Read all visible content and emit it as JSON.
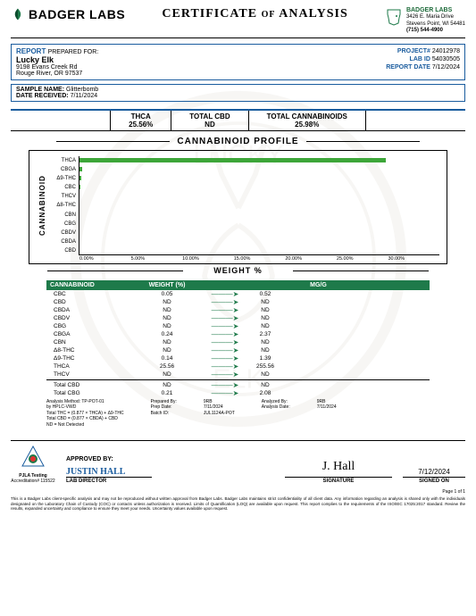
{
  "lab": {
    "name": "BADGER LABS",
    "addr_name": "BADGER LABS",
    "addr_line1": "3426 E. Maria Drive",
    "addr_line2": "Stevens Point, WI 54481",
    "phone": "(715) 544-4900"
  },
  "coa_title": "CERTIFICATE",
  "coa_of": "OF",
  "coa_analysis": "ANALYSIS",
  "report": {
    "label": "REPORT",
    "prepared_for": "PREPARED FOR:",
    "client": "Lucky Elk",
    "addr1": "9198 Evans Creek Rd",
    "addr2": "Rouge River, OR 97537",
    "project_lbl": "PROJECT#",
    "project": "24012978",
    "labid_lbl": "LAB ID",
    "labid": "54030505",
    "date_lbl": "REPORT DATE",
    "date": "7/12/2024"
  },
  "sample": {
    "name_lbl": "SAMPLE NAME:",
    "name": "Glitterbomb",
    "recv_lbl": "DATE RECEIVED:",
    "recv": "7/11/2024"
  },
  "summary": [
    {
      "h": "THCA",
      "v": "25.56%"
    },
    {
      "h": "TOTAL CBD",
      "v": "ND"
    },
    {
      "h": "TOTAL CANNABINOIDS",
      "v": "25.98%"
    }
  ],
  "profile_title": "CANNABINOID PROFILE",
  "y_axis_label": "CANNABINOID",
  "weight_label": "WEIGHT %",
  "chart": {
    "xmax": 30,
    "xticks": [
      "0.00%",
      "5.00%",
      "10.00%",
      "15.00%",
      "20.00%",
      "25.00%",
      "30.00%"
    ],
    "series": [
      {
        "label": "THCA",
        "value": 25.56,
        "color": "#3da639"
      },
      {
        "label": "CBGA",
        "value": 0.24,
        "color": "#3da639"
      },
      {
        "label": "Δ9-THC",
        "value": 0.14,
        "color": "#3da639"
      },
      {
        "label": "CBC",
        "value": 0.05,
        "color": "#3da639"
      },
      {
        "label": "THCV",
        "value": 0,
        "color": "#3da639"
      },
      {
        "label": "Δ8-THC",
        "value": 0,
        "color": "#3da639"
      },
      {
        "label": "CBN",
        "value": 0,
        "color": "#3da639"
      },
      {
        "label": "CBG",
        "value": 0,
        "color": "#3da639"
      },
      {
        "label": "CBDV",
        "value": 0,
        "color": "#3da639"
      },
      {
        "label": "CBDA",
        "value": 0,
        "color": "#3da639"
      },
      {
        "label": "CBD",
        "value": 0,
        "color": "#3da639"
      }
    ]
  },
  "table": {
    "h1": "CANNABINOID",
    "h2": "WEIGHT (%)",
    "h3": "MG/G",
    "rows": [
      {
        "c": "CBC",
        "w": "0.05",
        "m": "0.52"
      },
      {
        "c": "CBD",
        "w": "ND",
        "m": "ND"
      },
      {
        "c": "CBDA",
        "w": "ND",
        "m": "ND"
      },
      {
        "c": "CBDV",
        "w": "ND",
        "m": "ND"
      },
      {
        "c": "CBG",
        "w": "ND",
        "m": "ND"
      },
      {
        "c": "CBGA",
        "w": "0.24",
        "m": "2.37"
      },
      {
        "c": "CBN",
        "w": "ND",
        "m": "ND"
      },
      {
        "c": "Δ8-THC",
        "w": "ND",
        "m": "ND"
      },
      {
        "c": "Δ9-THC",
        "w": "0.14",
        "m": "1.39"
      },
      {
        "c": "THCA",
        "w": "25.56",
        "m": "255.56"
      },
      {
        "c": "THCV",
        "w": "ND",
        "m": "ND"
      }
    ],
    "totals": [
      {
        "c": "Total CBD",
        "w": "ND",
        "m": "ND"
      },
      {
        "c": "Total CBG",
        "w": "0.21",
        "m": "2.08"
      }
    ]
  },
  "meta": {
    "c1": "Analysis Method: TP-POT-01\nby HPLC-VWD\nTotal THC = (0.877 × THCA) + Δ9-THC\nTotal CBD = (0.877 × CBDA) + CBD\nND = Not Detected",
    "c2": "Prepared By:\nPrep Date:\nBatch ID:",
    "c2v": "9RB\n7/11/2024\nJUL1124A-POT",
    "c3": "Analyzed By:\nAnalysis Date:",
    "c3v": "9RB\n7/11/2024"
  },
  "footer": {
    "approved_by": "APPROVED BY:",
    "name": "JUSTIN HALL",
    "role": "LAB DIRECTOR",
    "signature": "SIGNATURE",
    "date": "7/12/2024",
    "signed_on": "SIGNED ON",
    "accred": "Accreditation# 115522",
    "pjla": "PJLA\nTesting",
    "page": "Page 1 of 1"
  },
  "disclaimer": "This is a Badger Labs client-specific analysis and may not be reproduced without written approval from Badger Labs. Badger Labs maintains strict confidentiality of all client data. Any information regarding an analysis is shared only with the individuals designated on the Laboratory Chain of Custody (COC) or contacts unless authorization is received. Limits of Quantification (LOQ) are available upon request. This report complies to the requirements of the ISO/IEC 17025:2017 standard. Review the results, expanded uncertainty and compliance to ensure they meet your needs. Uncertainty values available upon request."
}
